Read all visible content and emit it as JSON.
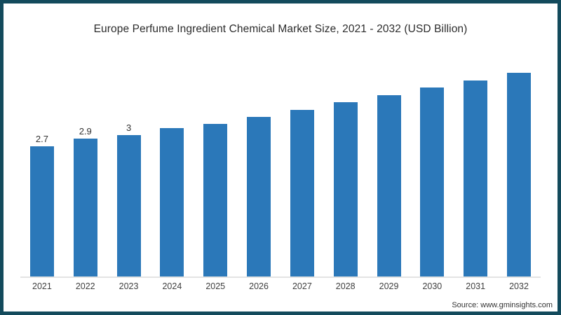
{
  "frame": {
    "border_color": "#134a5c",
    "background_color": "#ffffff"
  },
  "chart_data": {
    "type": "bar",
    "title": "Europe Perfume Ingredient Chemical Market Size, 2021 - 2032 (USD Billion)",
    "xlabel": "",
    "ylabel": "",
    "categories": [
      "2021",
      "2022",
      "2023",
      "2024",
      "2025",
      "2026",
      "2027",
      "2028",
      "2029",
      "2030",
      "2031",
      "2032"
    ],
    "values": [
      2.7,
      2.9,
      3.0,
      3.2,
      3.3,
      3.5,
      3.7,
      3.9,
      4.1,
      4.3,
      4.5,
      4.7
    ],
    "data_labels": [
      "2.7",
      "2.9",
      "3",
      "",
      "",
      "",
      "",
      "",
      "",
      "",
      "",
      ""
    ],
    "bar_color": "#2b78b9",
    "axis_line_color": "#e3e3e3",
    "y_axis_visible": false,
    "gridlines": false,
    "legend_position": "none"
  },
  "source": {
    "label": "Source: www.gminsights.com"
  }
}
